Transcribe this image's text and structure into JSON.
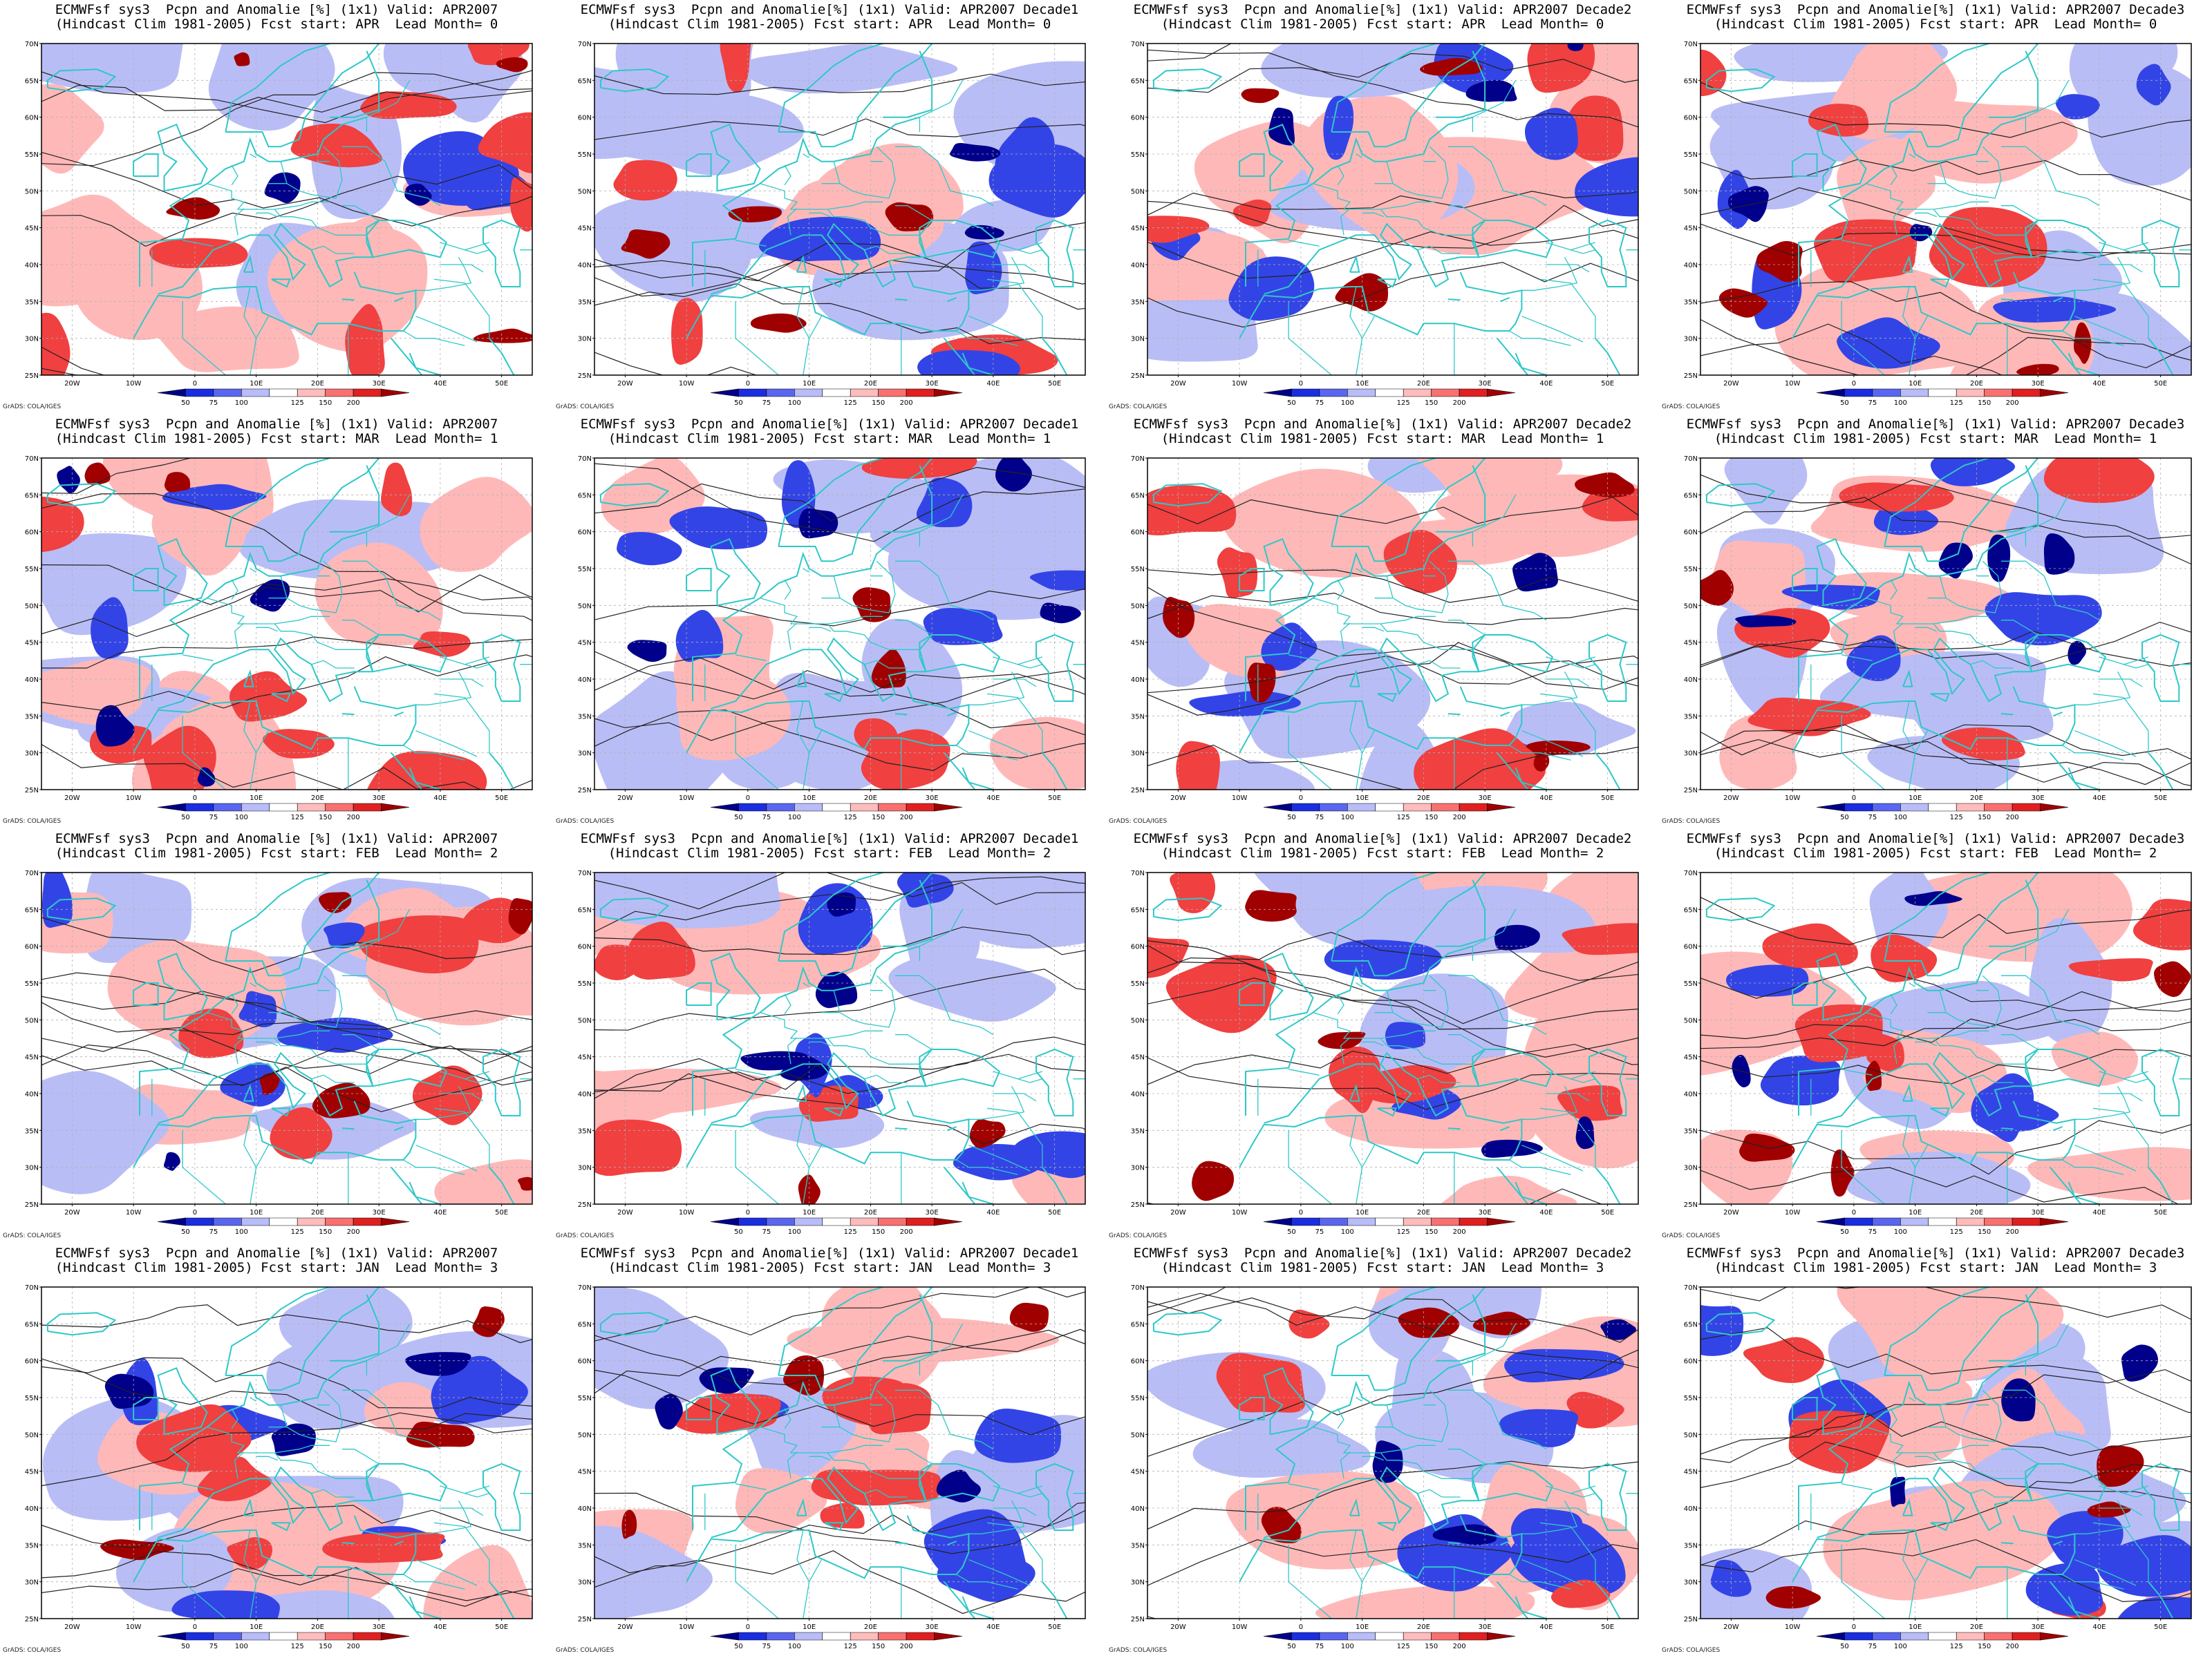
{
  "figure": {
    "rows": [
      {
        "lead_month": "0",
        "fcst_start": "APR"
      },
      {
        "lead_month": "1",
        "fcst_start": "MAR"
      },
      {
        "lead_month": "2",
        "fcst_start": "FEB"
      },
      {
        "lead_month": "3",
        "fcst_start": "JAN"
      }
    ],
    "columns": [
      {
        "valid": "APR2007"
      },
      {
        "valid": "APR2007 Decade1"
      },
      {
        "valid": "APR2007 Decade2"
      },
      {
        "valid": "APR2007 Decade3"
      }
    ],
    "panels": [
      {
        "title_line1": "ECMWFsf sys3  Pcpn and Anomalie [%] (1x1) Valid: APR2007",
        "title_line2": "(Hindcast Clim 1981-2005) Fcst start: APR  Lead Month= 0"
      },
      {
        "title_line1": "ECMWFsf sys3  Pcpn and Anomalie[%] (1x1) Valid: APR2007 Decade1",
        "title_line2": "(Hindcast Clim 1981-2005) Fcst start: APR  Lead Month= 0"
      },
      {
        "title_line1": "ECMWFsf sys3  Pcpn and Anomalie[%] (1x1) Valid: APR2007 Decade2",
        "title_line2": "(Hindcast Clim 1981-2005) Fcst start: APR  Lead Month= 0"
      },
      {
        "title_line1": "ECMWFsf sys3  Pcpn and Anomalie[%] (1x1) Valid: APR2007 Decade3",
        "title_line2": "(Hindcast Clim 1981-2005) Fcst start: APR  Lead Month= 0"
      },
      {
        "title_line1": "ECMWFsf sys3  Pcpn and Anomalie [%] (1x1) Valid: APR2007",
        "title_line2": "(Hindcast Clim 1981-2005) Fcst start: MAR  Lead Month= 1"
      },
      {
        "title_line1": "ECMWFsf sys3  Pcpn and Anomalie[%] (1x1) Valid: APR2007 Decade1",
        "title_line2": "(Hindcast Clim 1981-2005) Fcst start: MAR  Lead Month= 1"
      },
      {
        "title_line1": "ECMWFsf sys3  Pcpn and Anomalie[%] (1x1) Valid: APR2007 Decade2",
        "title_line2": "(Hindcast Clim 1981-2005) Fcst start: MAR  Lead Month= 1"
      },
      {
        "title_line1": "ECMWFsf sys3  Pcpn and Anomalie[%] (1x1) Valid: APR2007 Decade3",
        "title_line2": "(Hindcast Clim 1981-2005) Fcst start: MAR  Lead Month= 1"
      },
      {
        "title_line1": "ECMWFsf sys3  Pcpn and Anomalie [%] (1x1) Valid: APR2007",
        "title_line2": "(Hindcast Clim 1981-2005) Fcst start: FEB  Lead Month= 2"
      },
      {
        "title_line1": "ECMWFsf sys3  Pcpn and Anomalie[%] (1x1) Valid: APR2007 Decade1",
        "title_line2": "(Hindcast Clim 1981-2005) Fcst start: FEB  Lead Month= 2"
      },
      {
        "title_line1": "ECMWFsf sys3  Pcpn and Anomalie[%] (1x1) Valid: APR2007 Decade2",
        "title_line2": "(Hindcast Clim 1981-2005) Fcst start: FEB  Lead Month= 2"
      },
      {
        "title_line1": "ECMWFsf sys3  Pcpn and Anomalie[%] (1x1) Valid: APR2007 Decade3",
        "title_line2": "(Hindcast Clim 1981-2005) Fcst start: FEB  Lead Month= 2"
      },
      {
        "title_line1": "ECMWFsf sys3  Pcpn and Anomalie [%] (1x1) Valid: APR2007",
        "title_line2": "(Hindcast Clim 1981-2005) Fcst start: JAN  Lead Month= 3"
      },
      {
        "title_line1": "ECMWFsf sys3  Pcpn and Anomalie[%] (1x1) Valid: APR2007 Decade1",
        "title_line2": "(Hindcast Clim 1981-2005) Fcst start: JAN  Lead Month= 3"
      },
      {
        "title_line1": "ECMWFsf sys3  Pcpn and Anomalie[%] (1x1) Valid: APR2007 Decade2",
        "title_line2": "(Hindcast Clim 1981-2005) Fcst start: JAN  Lead Month= 3"
      },
      {
        "title_line1": "ECMWFsf sys3  Pcpn and Anomalie[%] (1x1) Valid: APR2007 Decade3",
        "title_line2": "(Hindcast Clim 1981-2005) Fcst start: JAN  Lead Month= 3"
      }
    ],
    "lat_labels": [
      "70N",
      "65N",
      "60N",
      "55N",
      "50N",
      "45N",
      "40N",
      "35N",
      "30N",
      "25N"
    ],
    "lon_labels": [
      "20W",
      "10W",
      "0",
      "10E",
      "20E",
      "30E",
      "40E",
      "50E"
    ],
    "colorbar": {
      "ticks": [
        "50",
        "75",
        "100",
        "125",
        "150",
        "200"
      ],
      "colors": [
        "#00008b",
        "#1a2ee0",
        "#5a66f0",
        "#b8bcf8",
        "#ffffff",
        "#ffbcbc",
        "#f87070",
        "#e02020",
        "#a00000"
      ]
    },
    "credit": "GrADS: COLA/IGES",
    "colors": {
      "coast": "#2ec8c8",
      "contour": "#222222",
      "neg_strong": "#00008b",
      "neg_mid": "#3344e6",
      "neg_weak": "#b9bdf6",
      "pos_weak": "#ffb8b8",
      "pos_mid": "#f04040",
      "pos_strong": "#a00000"
    }
  }
}
